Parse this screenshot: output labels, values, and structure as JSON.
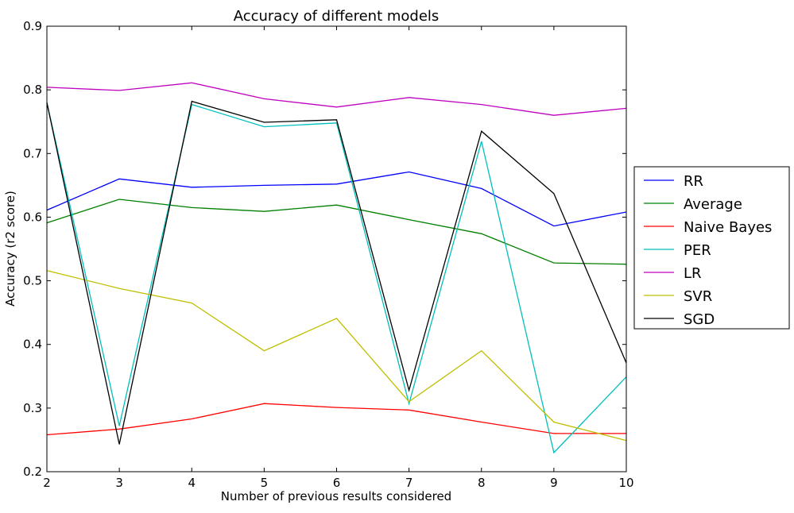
{
  "chart_data": {
    "type": "line",
    "title": "Accuracy of different models",
    "xlabel": "Number of previous results considered",
    "ylabel": "Accuracy (r2 score)",
    "xlim": [
      2,
      10
    ],
    "ylim": [
      0.2,
      0.9
    ],
    "xticks": [
      2,
      3,
      4,
      5,
      6,
      7,
      8,
      9,
      10
    ],
    "yticks": [
      0.2,
      0.3,
      0.4,
      0.5,
      0.6,
      0.7,
      0.8,
      0.9
    ],
    "grid": false,
    "legend_position": "right-outside",
    "x": [
      2,
      3,
      4,
      5,
      6,
      7,
      8,
      9,
      10
    ],
    "series": [
      {
        "name": "RR",
        "color": "#0000ff",
        "values": [
          0.611,
          0.66,
          0.647,
          0.65,
          0.652,
          0.671,
          0.645,
          0.586,
          0.608
        ]
      },
      {
        "name": "Average",
        "color": "#008000",
        "values": [
          0.591,
          0.628,
          0.615,
          0.609,
          0.619,
          0.596,
          0.574,
          0.528,
          0.526
        ]
      },
      {
        "name": "Naive Bayes",
        "color": "#ff0000",
        "values": [
          0.258,
          0.267,
          0.283,
          0.307,
          0.301,
          0.297,
          0.278,
          0.26,
          0.26
        ]
      },
      {
        "name": "PER",
        "color": "#00bfbf",
        "values": [
          0.78,
          0.272,
          0.777,
          0.742,
          0.748,
          0.307,
          0.719,
          0.23,
          0.349
        ]
      },
      {
        "name": "LR",
        "color": "#bf00bf",
        "values": [
          0.804,
          0.799,
          0.811,
          0.786,
          0.773,
          0.788,
          0.777,
          0.76,
          0.771
        ]
      },
      {
        "name": "SVR",
        "color": "#bfbf00",
        "values": [
          0.516,
          0.488,
          0.465,
          0.39,
          0.441,
          0.31,
          0.39,
          0.278,
          0.249
        ]
      },
      {
        "name": "SGD",
        "color": "#000000",
        "values": [
          0.78,
          0.243,
          0.782,
          0.749,
          0.753,
          0.328,
          0.735,
          0.637,
          0.371
        ]
      }
    ]
  }
}
